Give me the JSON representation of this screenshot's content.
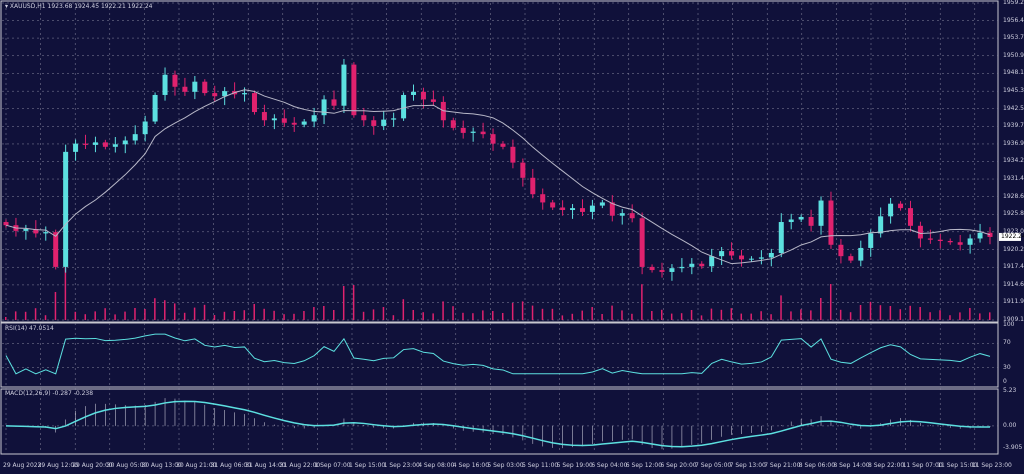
{
  "header": {
    "symbol": "XAUUSD,H1",
    "ohlc": "1923.68 1924.45 1922.21 1922.24"
  },
  "rsi_label": "RSI(14) 47.0514",
  "macd_label": "MACD(12,26,9) -0.287 -0.238",
  "colors": {
    "bg": "#10113a",
    "bull": "#5ce0e0",
    "bear": "#e0226e",
    "ma": "#b8b8c8",
    "grid": "#8a8aa0",
    "volume": "#e0226e"
  },
  "chart_data": {
    "type": "candlestick",
    "price_axis_ticks": [
      "1959.25",
      "1956.45",
      "1953.70",
      "1950.90",
      "1948.10",
      "1945.30",
      "1942.55",
      "1939.75",
      "1936.95",
      "1934.20",
      "1931.40",
      "1928.60",
      "1925.80",
      "1923.05",
      "1920.25",
      "1917.45",
      "1914.65",
      "1911.90",
      "1909.10"
    ],
    "ylim": [
      1909.1,
      1959.25
    ],
    "current_price": "1922.24",
    "rsi_ticks": [
      "100",
      "70",
      "30",
      "0"
    ],
    "macd_ticks": [
      "5.23",
      "0.00",
      "-3.905"
    ],
    "time_labels": [
      "29 Aug 2023",
      "29 Aug 12:00",
      "29 Aug 20:00",
      "30 Aug 05:00",
      "30 Aug 13:00",
      "30 Aug 21:00",
      "31 Aug 06:00",
      "31 Aug 14:00",
      "31 Aug 22:00",
      "1 Sep 07:00",
      "1 Sep 15:00",
      "1 Sep 23:00",
      "4 Sep 08:00",
      "4 Sep 16:00",
      "5 Sep 03:00",
      "5 Sep 11:00",
      "5 Sep 19:00",
      "6 Sep 04:00",
      "6 Sep 12:00",
      "6 Sep 20:00",
      "7 Sep 05:00",
      "7 Sep 13:00",
      "7 Sep 21:00",
      "8 Sep 06:00",
      "8 Sep 14:00",
      "8 Sep 22:00",
      "11 Sep 07:00",
      "11 Sep 15:00",
      "11 Sep 23:00"
    ],
    "closes": [
      1924.1,
      1923.2,
      1923.5,
      1922.8,
      1923.0,
      1917.5,
      1935.7,
      1937.0,
      1936.8,
      1937.2,
      1936.5,
      1936.9,
      1937.5,
      1938.5,
      1940.5,
      1944.7,
      1947.9,
      1946.0,
      1945.2,
      1946.8,
      1945.0,
      1944.5,
      1945.3,
      1944.8,
      1945.0,
      1942.0,
      1940.7,
      1941.0,
      1940.3,
      1940.0,
      1940.5,
      1941.5,
      1944.0,
      1943.0,
      1949.5,
      1941.5,
      1940.7,
      1939.8,
      1940.8,
      1941.0,
      1944.7,
      1945.2,
      1944.0,
      1943.6,
      1940.7,
      1939.5,
      1938.7,
      1938.9,
      1938.5,
      1937.0,
      1936.5,
      1934.0,
      1931.6,
      1929.0,
      1927.7,
      1926.9,
      1926.5,
      1926.8,
      1926.2,
      1927.2,
      1927.7,
      1925.6,
      1926.0,
      1925.2,
      1917.5,
      1917.0,
      1916.7,
      1917.3,
      1917.5,
      1918.0,
      1917.6,
      1919.2,
      1920.0,
      1919.3,
      1918.7,
      1918.8,
      1919.0,
      1919.7,
      1924.6,
      1925.0,
      1925.4,
      1924.0,
      1928.0,
      1921.0,
      1919.2,
      1918.5,
      1920.5,
      1922.8,
      1925.5,
      1927.5,
      1926.8,
      1924.0,
      1922.0,
      1921.8,
      1921.6,
      1921.4,
      1921.0,
      1922.0,
      1922.9,
      1922.24
    ]
  }
}
